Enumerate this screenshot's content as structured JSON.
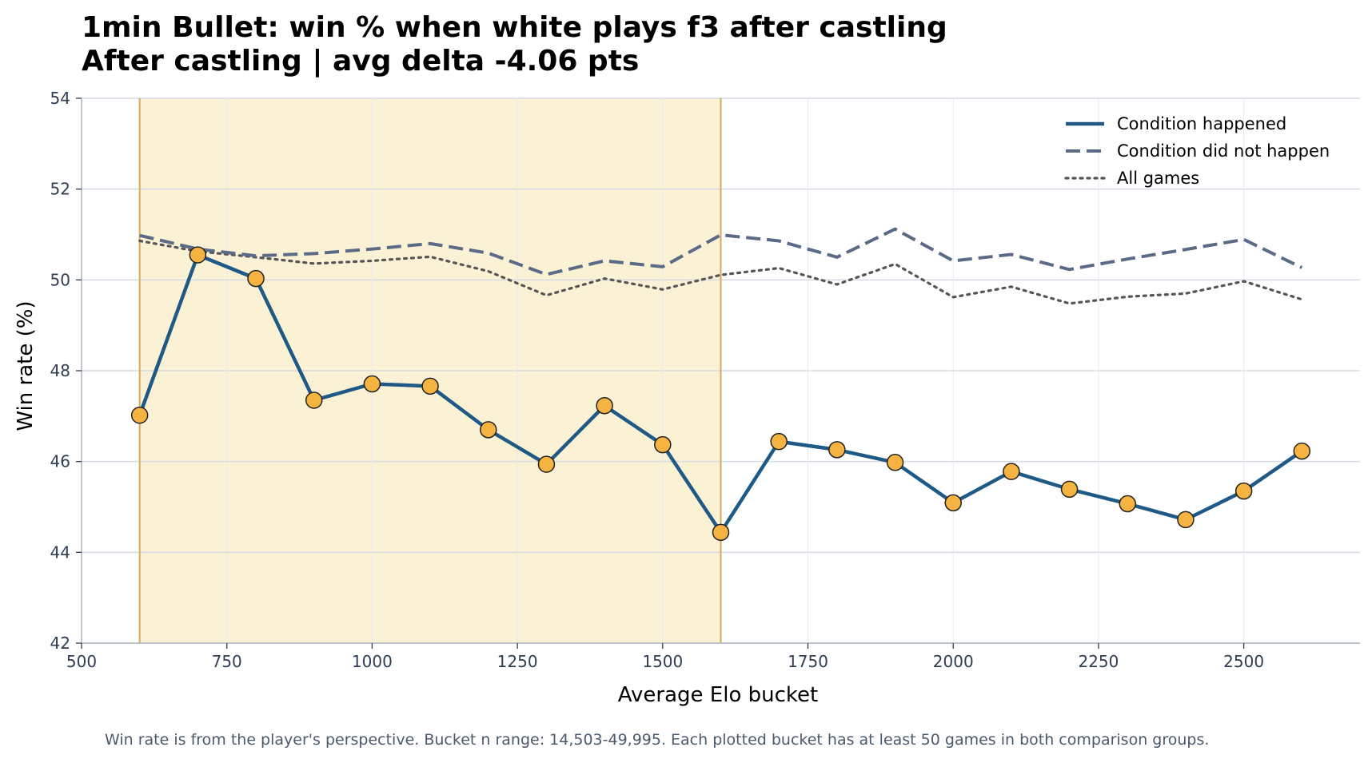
{
  "chart_data": {
    "type": "line",
    "title": "1min Bullet: win % when white plays f3 after castling",
    "subtitle": "After castling | avg delta -4.06 pts",
    "xlabel": "Average Elo bucket",
    "ylabel": "Win rate (%)",
    "xlim": [
      500,
      2700
    ],
    "ylim": [
      42,
      54
    ],
    "xticks": [
      500,
      750,
      1000,
      1250,
      1500,
      1750,
      2000,
      2250,
      2500
    ],
    "yticks": [
      42,
      44,
      46,
      48,
      50,
      52,
      54
    ],
    "grid": true,
    "legend_position": "top-right",
    "highlight_span": [
      600,
      1600
    ],
    "x": [
      600,
      700,
      800,
      900,
      1000,
      1100,
      1200,
      1300,
      1400,
      1500,
      1600,
      1700,
      1800,
      1900,
      2000,
      2100,
      2200,
      2300,
      2400,
      2500,
      2600
    ],
    "series": [
      {
        "name": "Condition happened",
        "style": "solid",
        "color": "#1f5a87",
        "marker_color": "#f5b342",
        "values": [
          47.02,
          50.55,
          50.03,
          47.35,
          47.71,
          47.66,
          46.7,
          45.94,
          47.23,
          46.37,
          44.44,
          46.44,
          46.26,
          45.98,
          45.09,
          45.78,
          45.39,
          45.07,
          44.72,
          45.35,
          46.23
        ]
      },
      {
        "name": "Condition did not happen",
        "style": "dashed",
        "color": "#5b6b87",
        "values": [
          50.98,
          50.68,
          50.53,
          50.58,
          50.68,
          50.8,
          50.59,
          50.12,
          50.42,
          50.29,
          50.99,
          50.86,
          50.5,
          51.12,
          50.42,
          50.56,
          50.23,
          50.46,
          50.67,
          50.89,
          50.27
        ]
      },
      {
        "name": "All games",
        "style": "dotted",
        "color": "#555555",
        "values": [
          50.86,
          50.63,
          50.5,
          50.36,
          50.42,
          50.51,
          50.19,
          49.66,
          50.03,
          49.79,
          50.11,
          50.26,
          49.9,
          50.35,
          49.62,
          49.85,
          49.48,
          49.63,
          49.7,
          49.97,
          49.57
        ]
      }
    ],
    "colors": {
      "highlight_fill": "#fbf1d4",
      "highlight_edge": "#d4a95c",
      "grid": "#d5dbe3",
      "axis": "#aab3bf"
    }
  },
  "footnote": "Win rate is from the player's perspective. Bucket n range: 14,503-49,995. Each plotted bucket has at least 50 games in both comparison groups."
}
